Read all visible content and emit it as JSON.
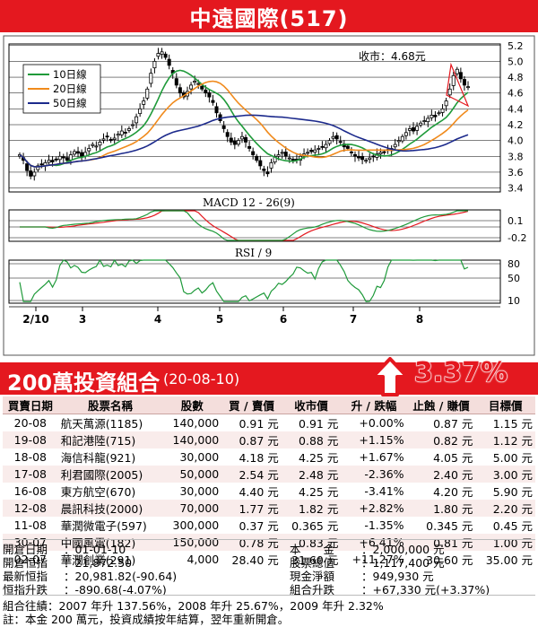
{
  "header": {
    "title": "中遠國際(517)"
  },
  "chart_data": [
    {
      "type": "candlestick",
      "series": [
        {
          "name": "10日線"
        },
        {
          "name": "20日線"
        },
        {
          "name": "50日線"
        }
      ],
      "annotation": "收市：4.68元",
      "yticks": [
        "5.2",
        "5.0",
        "4.8",
        "4.6",
        "4.4",
        "4.2",
        "4.0",
        "3.8",
        "3.6",
        "3.4"
      ],
      "ylim": [
        3.35,
        5.22
      ],
      "xticks": [
        "2/10",
        "3",
        "4",
        "5",
        "6",
        "7",
        "8"
      ],
      "close": [
        3.82,
        3.75,
        3.62,
        3.55,
        3.6,
        3.68,
        3.7,
        3.72,
        3.75,
        3.73,
        3.76,
        3.8,
        3.78,
        3.75,
        3.82,
        3.86,
        3.84,
        3.8,
        3.85,
        3.9,
        3.95,
        3.93,
        3.98,
        4.02,
        4.05,
        4.0,
        4.03,
        4.08,
        4.12,
        4.1,
        4.15,
        4.2,
        4.3,
        4.4,
        4.5,
        4.65,
        4.85,
        5.0,
        5.1,
        5.12,
        5.05,
        4.95,
        4.85,
        4.7,
        4.6,
        4.55,
        4.62,
        4.7,
        4.75,
        4.72,
        4.65,
        4.6,
        4.55,
        4.48,
        4.35,
        4.25,
        4.15,
        4.05,
        3.98,
        3.95,
        4.0,
        4.05,
        3.98,
        3.9,
        3.82,
        3.75,
        3.68,
        3.62,
        3.58,
        3.72,
        3.8,
        3.82,
        3.85,
        3.8,
        3.78,
        3.74,
        3.76,
        3.8,
        3.83,
        3.85,
        3.86,
        3.88,
        3.9,
        3.92,
        3.95,
        4.0,
        4.05,
        4.02,
        3.98,
        3.92,
        3.9,
        3.85,
        3.8,
        3.78,
        3.76,
        3.75,
        3.78,
        3.8,
        3.83,
        3.85,
        3.85,
        3.88,
        3.9,
        3.95,
        4.0,
        4.05,
        4.1,
        4.15,
        4.12,
        4.18,
        4.22,
        4.25,
        4.28,
        4.32,
        4.3,
        4.35,
        4.4,
        4.5,
        4.65,
        4.82,
        4.9,
        4.78,
        4.7,
        4.68
      ]
    },
    {
      "type": "line",
      "title": "MACD 12 - 26(9)",
      "yticks": [
        "0.1",
        "-0.2"
      ]
    },
    {
      "type": "line",
      "title": "RSI / 9",
      "yticks": [
        "80",
        "50",
        "10"
      ]
    }
  ],
  "portfolio": {
    "title": "200萬投資組合",
    "date": "(20-08-10)",
    "change": "3.37%",
    "columns": [
      "買賣日期",
      "股票名稱",
      "股數",
      "買 / 賣價",
      "收市價",
      "升 / 跌幅",
      "止蝕 / 賺價",
      "目標價"
    ],
    "rows": [
      [
        "20-08",
        "航天萬源(1185)",
        "140,000",
        "0.91 元",
        "0.91 元",
        "+0.00%",
        "0.87 元",
        "1.15 元"
      ],
      [
        "19-08",
        "和記港陸(715)",
        "140,000",
        "0.87 元",
        "0.88 元",
        "+1.15%",
        "0.82 元",
        "1.12 元"
      ],
      [
        "18-08",
        "海信科龍(921)",
        "30,000",
        "4.18 元",
        "4.25 元",
        "+1.67%",
        "4.05 元",
        "5.00 元"
      ],
      [
        "17-08",
        "利君國際(2005)",
        "50,000",
        "2.54 元",
        "2.48 元",
        "-2.36%",
        "2.40 元",
        "3.00 元"
      ],
      [
        "16-08",
        "東方航空(670)",
        "30,000",
        "4.40 元",
        "4.25 元",
        "-3.41%",
        "4.20 元",
        "5.90 元"
      ],
      [
        "12-08",
        "晨訊科技(2000)",
        "70,000",
        "1.77 元",
        "1.82 元",
        "+2.82%",
        "1.80 元",
        "2.20 元"
      ],
      [
        "11-08",
        "華潤微電子(597)",
        "300,000",
        "0.37 元",
        "0.365 元",
        "-1.35%",
        "0.345 元",
        "0.45 元"
      ],
      [
        "30-07",
        "中國風電(182)",
        "150,000",
        "0.78 元",
        "0.83 元",
        "+6.41%",
        "0.81 元",
        "1.00 元"
      ],
      [
        "02-07",
        "華潤創業(291)",
        "4,000",
        "28.40 元",
        "31.60 元",
        "+11.27%",
        "30.60 元",
        "35.00 元"
      ]
    ]
  },
  "summary": {
    "open_date_label": "開倉日期",
    "open_date": "：01-01-10",
    "open_index_label": "開倉恒指",
    "open_index": "：21,872.50",
    "latest_index_label": "最新恒指",
    "latest_index": "：20,981.82(-90.64)",
    "index_change_label": "恒指升跌",
    "index_change": "：-890.68(-4.07%)",
    "capital_label": "本　　金",
    "capital": "：2,000,000 元",
    "stock_value_label": "股票總值",
    "stock_value": "：1,117,400 元",
    "cash_label": "現金淨額",
    "cash": "：949,930 元",
    "portfolio_change_label": "組合升跌",
    "portfolio_change": "：+67,330 元(+3.37%)"
  },
  "footer": {
    "history": "組合往績：2007 年升 137.56%，2008 年升 25.67%，2009 年升 2.32%",
    "note": "註：本金 200 萬元，投資成績按年結算，翌年重新開倉。"
  }
}
